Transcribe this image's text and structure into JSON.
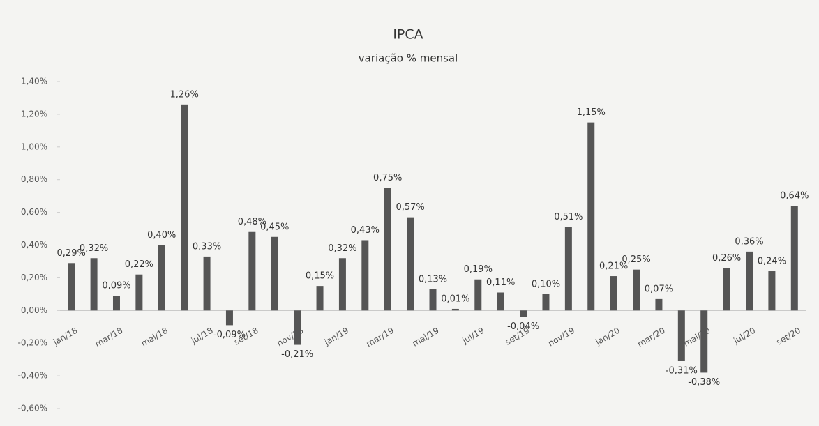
{
  "chart_data": {
    "type": "bar",
    "title": "IPCA",
    "subtitle": "variação % mensal",
    "categories": [
      "jan/18",
      null,
      "mar/18",
      null,
      "mai/18",
      null,
      "jul/18",
      null,
      "set/18",
      null,
      "nov/18",
      null,
      "jan/19",
      null,
      "mar/19",
      null,
      "mai/19",
      null,
      "jul/19",
      null,
      "set/19",
      null,
      "nov/19",
      null,
      "jan/20",
      null,
      "mar/20",
      null,
      "mai/20",
      null,
      "jul/20",
      null,
      "set/20"
    ],
    "values": [
      0.29,
      0.32,
      0.09,
      0.22,
      0.4,
      1.26,
      0.33,
      -0.09,
      0.48,
      0.45,
      -0.21,
      0.15,
      0.32,
      0.43,
      0.75,
      0.57,
      0.13,
      0.01,
      0.19,
      0.11,
      -0.04,
      0.1,
      0.51,
      1.15,
      0.21,
      0.25,
      0.07,
      -0.31,
      -0.38,
      0.26,
      0.36,
      0.24,
      0.64
    ],
    "value_labels": [
      "0,29%",
      "0,32%",
      "0,09%",
      "0,22%",
      "0,40%",
      "1,26%",
      "0,33%",
      "-0,09%",
      "0,48%",
      "0,45%",
      "-0,21%",
      "0,15%",
      "0,32%",
      "0,43%",
      "0,75%",
      "0,57%",
      "0,13%",
      "0,01%",
      "0,19%",
      "0,11%",
      "-0,04%",
      "0,10%",
      "0,51%",
      "1,15%",
      "0,21%",
      "0,25%",
      "0,07%",
      "-0,31%",
      "-0,38%",
      "0,26%",
      "0,36%",
      "0,24%",
      "0,64%"
    ],
    "color": "#555555",
    "ylim": [
      -0.6,
      1.4
    ],
    "yticks": [
      {
        "value": -0.6,
        "label": "-0,60%"
      },
      {
        "value": -0.4,
        "label": "-0,40%"
      },
      {
        "value": -0.2,
        "label": "-0,20%"
      },
      {
        "value": 0,
        "label": "0,00%"
      },
      {
        "value": 0.2,
        "label": "0,20%"
      },
      {
        "value": 0.4,
        "label": "0,40%"
      },
      {
        "value": 0.6,
        "label": "0,60%"
      },
      {
        "value": 0.8,
        "label": "0,80%"
      },
      {
        "value": 1.0,
        "label": "1,00%"
      },
      {
        "value": 1.2,
        "label": "1,20%"
      },
      {
        "value": 1.4,
        "label": "1,40%"
      }
    ],
    "grid": false
  }
}
